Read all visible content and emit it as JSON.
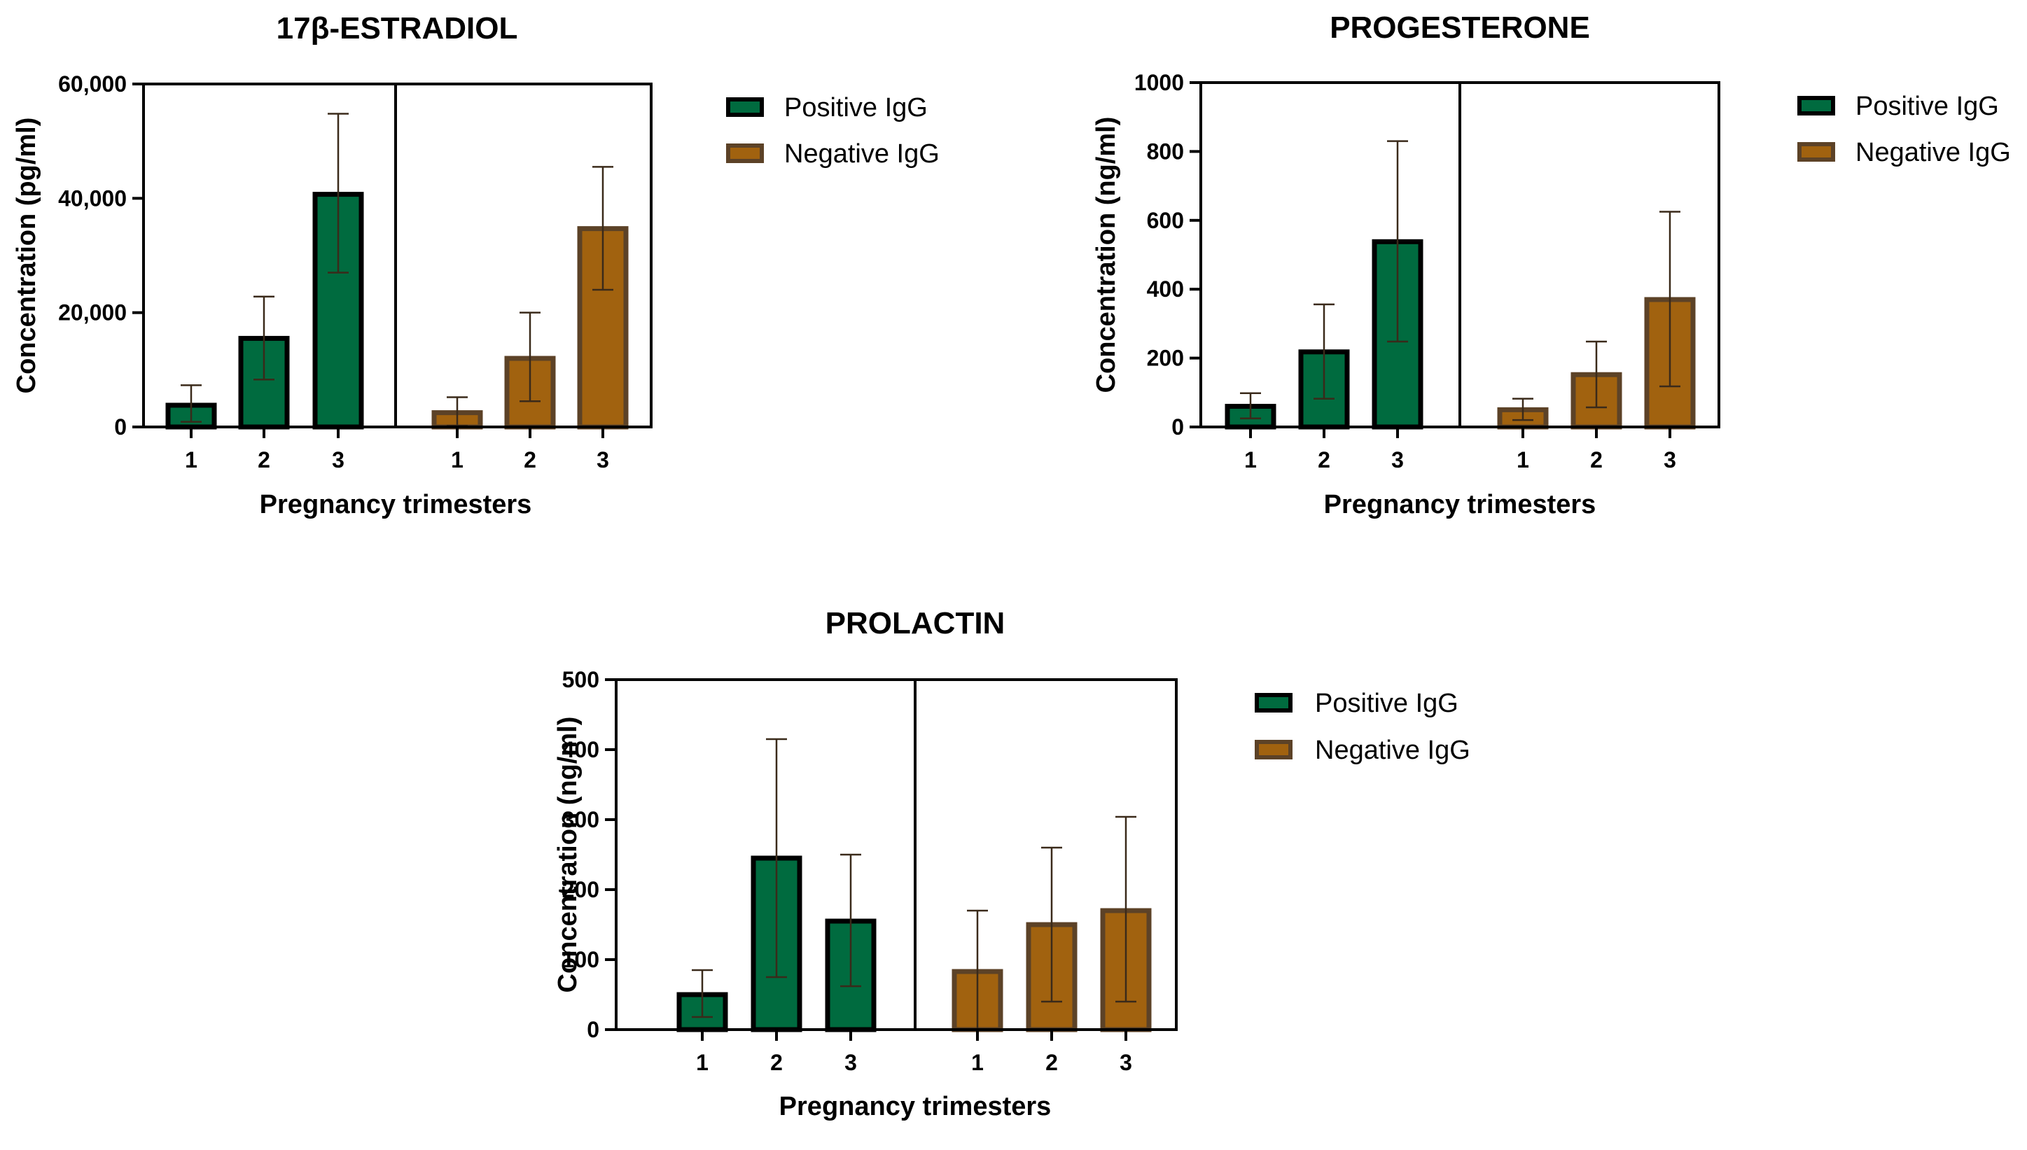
{
  "colors": {
    "positive_fill": "#006B3F",
    "positive_stroke": "#000000",
    "negative_fill": "#A1620F",
    "negative_stroke": "#5C4227",
    "errorbar": "#3A2A1A",
    "axis": "#000000"
  },
  "chart_data": [
    {
      "type": "bar",
      "title": "17β-ESTRADIOL",
      "xlabel": "Pregnancy trimesters",
      "ylabel": "Concentration (pg/ml)",
      "ylim": [
        0,
        60000
      ],
      "yticks": [
        0,
        20000,
        40000,
        60000
      ],
      "ytick_labels": [
        "0",
        "20,000",
        "40,000",
        "60,000"
      ],
      "categories": [
        "1",
        "2",
        "3"
      ],
      "legend": [
        "Positive IgG",
        "Negative IgG"
      ],
      "series": [
        {
          "name": "Positive IgG",
          "values": [
            3800,
            15500,
            40700
          ],
          "err_low": [
            900,
            8300,
            27000
          ],
          "err_high": [
            7300,
            22800,
            54800
          ]
        },
        {
          "name": "Negative IgG",
          "values": [
            2500,
            12000,
            34700
          ],
          "err_low": [
            200,
            4500,
            24000
          ],
          "err_high": [
            5200,
            20000,
            45500
          ]
        }
      ]
    },
    {
      "type": "bar",
      "title": "PROGESTERONE",
      "xlabel": "Pregnancy trimesters",
      "ylabel": "Concentration (ng/ml)",
      "ylim": [
        0,
        1000
      ],
      "yticks": [
        0,
        200,
        400,
        600,
        800,
        1000
      ],
      "ytick_labels": [
        "0",
        "200",
        "400",
        "600",
        "800",
        "1000"
      ],
      "categories": [
        "1",
        "2",
        "3"
      ],
      "legend": [
        "Positive IgG",
        "Negative IgG"
      ],
      "series": [
        {
          "name": "Positive IgG",
          "values": [
            60,
            218,
            538
          ],
          "err_low": [
            25,
            82,
            248
          ],
          "err_high": [
            98,
            356,
            830
          ]
        },
        {
          "name": "Negative IgG",
          "values": [
            50,
            152,
            370
          ],
          "err_low": [
            20,
            57,
            118
          ],
          "err_high": [
            82,
            248,
            625
          ]
        }
      ]
    },
    {
      "type": "bar",
      "title": "PROLACTIN",
      "xlabel": "Pregnancy trimesters",
      "ylabel": "Concentration (ng/ml)",
      "ylim": [
        0,
        500
      ],
      "yticks": [
        0,
        100,
        200,
        300,
        400,
        500
      ],
      "ytick_labels": [
        "0",
        "100",
        "200",
        "300",
        "400",
        "500"
      ],
      "categories": [
        "1",
        "2",
        "3"
      ],
      "legend": [
        "Positive IgG",
        "Negative IgG"
      ],
      "series": [
        {
          "name": "Positive IgG",
          "values": [
            50,
            245,
            155
          ],
          "err_low": [
            18,
            75,
            62
          ],
          "err_high": [
            85,
            415,
            250
          ]
        },
        {
          "name": "Negative IgG",
          "values": [
            83,
            150,
            170
          ],
          "err_low": [
            0,
            40,
            40
          ],
          "err_high": [
            170,
            260,
            304
          ]
        }
      ]
    }
  ]
}
